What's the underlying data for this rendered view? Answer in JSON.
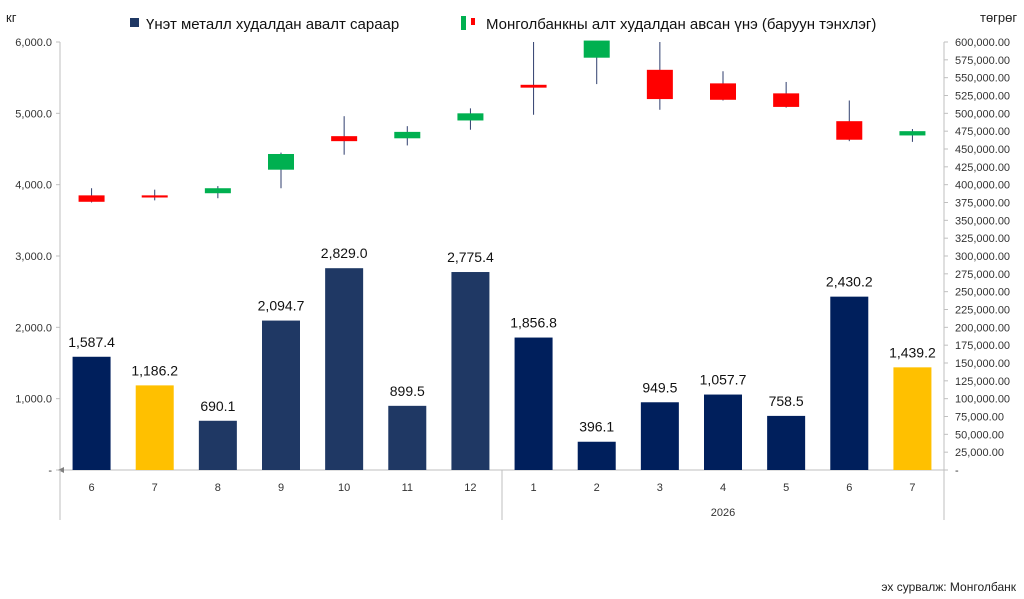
{
  "chart_data": {
    "type": "bar",
    "left_unit": "кг",
    "right_unit": "төгрөг",
    "source": "эх сурвалж: Монголбанк",
    "year_label": "2026",
    "categories": [
      "6",
      "7",
      "8",
      "9",
      "10",
      "11",
      "12",
      "1",
      "2",
      "3",
      "4",
      "5",
      "6",
      "7"
    ],
    "left_axis": {
      "min": 0,
      "max": 6000,
      "step": 1000,
      "tick_labels": [
        "-",
        "1,000.0",
        "2,000.0",
        "3,000.0",
        "4,000.0",
        "5,000.0",
        "6,000.0"
      ]
    },
    "right_axis": {
      "min": 0,
      "max": 600000,
      "step": 25000,
      "tick_labels": [
        "-",
        "25,000.00",
        "50,000.00",
        "75,000.00",
        "100,000.00",
        "125,000.00",
        "150,000.00",
        "175,000.00",
        "200,000.00",
        "225,000.00",
        "250,000.00",
        "275,000.00",
        "300,000.00",
        "325,000.00",
        "350,000.00",
        "375,000.00",
        "400,000.00",
        "425,000.00",
        "450,000.00",
        "475,000.00",
        "500,000.00",
        "525,000.00",
        "550,000.00",
        "575,000.00",
        "600,000.00"
      ]
    },
    "series": [
      {
        "name": "Үнэт металл худалдан авалт сараар",
        "kind": "bar",
        "axis": "left",
        "values": [
          1587.4,
          1186.2,
          690.1,
          2094.7,
          2829.0,
          899.5,
          2775.4,
          1856.8,
          396.1,
          949.5,
          1057.7,
          758.5,
          2430.2,
          1439.2
        ],
        "labels": [
          "1,587.4",
          "1,186.2",
          "690.1",
          "2,094.7",
          "2,829.0",
          "899.5",
          "2,775.4",
          "1,856.8",
          "396.1",
          "949.5",
          "1,057.7",
          "758.5",
          "2,430.2",
          "1,439.2"
        ],
        "colors": [
          "#001f5c",
          "#ffc000",
          "#1f3864",
          "#1f3864",
          "#1f3864",
          "#1f3864",
          "#1f3864",
          "#001f5c",
          "#001f5c",
          "#001f5c",
          "#001f5c",
          "#001f5c",
          "#001f5c",
          "#ffc000"
        ],
        "legend_color": "#1f3864"
      },
      {
        "name": "Монголбанкны алт худалдан авсан үнэ (баруун тэнхлэг)",
        "kind": "candlestick",
        "axis": "right",
        "up_color": "#00b050",
        "down_color": "#ff0000",
        "ohlc": [
          {
            "open": 385000,
            "high": 395000,
            "low": 375000,
            "close": 376000
          },
          {
            "open": 385000,
            "high": 393000,
            "low": 378000,
            "close": 382000
          },
          {
            "open": 388000,
            "high": 398000,
            "low": 381000,
            "close": 395000
          },
          {
            "open": 421000,
            "high": 445000,
            "low": 395000,
            "close": 443000
          },
          {
            "open": 468000,
            "high": 496000,
            "low": 442000,
            "close": 461000
          },
          {
            "open": 465000,
            "high": 482000,
            "low": 455000,
            "close": 474000
          },
          {
            "open": 490000,
            "high": 507000,
            "low": 477000,
            "close": 500000
          },
          {
            "open": 540000,
            "high": 602000,
            "low": 498000,
            "close": 536000
          },
          {
            "open": 578000,
            "high": 602000,
            "low": 541000,
            "close": 602000
          },
          {
            "open": 561000,
            "high": 602000,
            "low": 505000,
            "close": 520000
          },
          {
            "open": 542000,
            "high": 559000,
            "low": 518000,
            "close": 519000
          },
          {
            "open": 528000,
            "high": 544000,
            "low": 508000,
            "close": 509000
          },
          {
            "open": 489000,
            "high": 518000,
            "low": 461000,
            "close": 463000
          },
          {
            "open": 469000,
            "high": 478000,
            "low": 460000,
            "close": 475000
          }
        ]
      }
    ],
    "legend_position": "top"
  }
}
